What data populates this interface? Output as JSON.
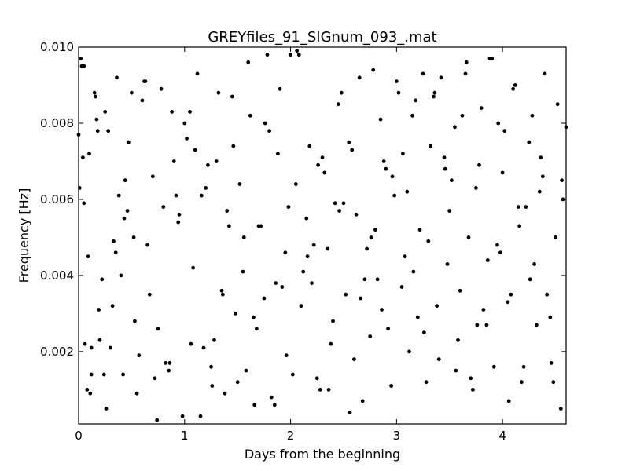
{
  "chart_data": {
    "type": "scatter",
    "title": "GREYfiles_91_SIGnum_093_.mat",
    "xlabel": "Days from the beginning",
    "ylabel": "Frequency [Hz]",
    "xlim": [
      0,
      4.6
    ],
    "ylim": [
      0.0001,
      0.01
    ],
    "x_ticks": [
      0,
      1,
      2,
      3,
      4
    ],
    "x_tick_labels": [
      "0",
      "1",
      "2",
      "3",
      "4"
    ],
    "y_ticks": [
      0.002,
      0.004,
      0.006,
      0.008,
      0.01
    ],
    "y_tick_labels": [
      "0.002",
      "0.004",
      "0.006",
      "0.008",
      "0.010"
    ],
    "grid": false,
    "marker_color": "#000000",
    "series": [
      {
        "x": [
          0.0,
          0.02,
          0.04,
          0.05,
          0.08,
          0.1,
          0.11,
          0.15,
          0.17,
          0.2,
          0.22,
          0.25,
          0.3,
          0.33,
          0.38,
          0.4,
          0.43,
          0.47,
          0.5,
          0.55,
          0.6,
          0.65,
          0.7,
          0.75,
          0.8,
          0.85,
          0.9,
          0.95,
          1.0,
          1.05,
          1.1,
          1.15,
          1.2,
          1.25,
          1.3,
          1.35,
          1.4,
          1.45,
          1.5,
          1.55,
          1.6,
          1.65,
          1.7,
          1.75,
          1.8,
          1.85,
          1.9,
          1.95,
          2.0,
          2.05,
          2.1,
          2.15,
          2.2,
          2.25,
          2.3,
          2.35,
          2.4,
          2.45,
          2.5,
          2.55,
          2.6,
          2.65,
          2.7,
          2.75,
          2.8,
          2.85,
          2.9,
          2.95,
          3.0,
          3.05,
          3.1,
          3.15,
          3.2,
          3.25,
          3.3,
          3.35,
          3.4,
          3.45,
          3.5,
          3.55,
          3.6,
          3.65,
          3.7,
          3.75,
          3.8,
          3.85,
          3.9,
          3.95,
          4.0,
          4.05,
          4.1,
          4.15,
          4.2,
          4.25,
          4.3,
          4.35,
          4.4,
          4.45,
          4.5,
          4.55,
          4.6,
          0.01,
          0.03,
          0.06,
          0.09,
          0.12,
          0.16,
          0.19,
          0.24,
          0.28,
          0.32,
          0.36,
          0.42,
          0.46,
          0.52,
          0.57,
          0.62,
          0.67,
          0.72,
          0.78,
          0.82,
          0.88,
          0.92,
          0.98,
          1.02,
          1.08,
          1.12,
          1.18,
          1.22,
          1.28,
          1.32,
          1.38,
          1.42,
          1.48,
          1.52,
          1.58,
          1.62,
          1.68,
          1.72,
          1.78,
          1.82,
          1.88,
          1.92,
          1.98,
          2.02,
          2.08,
          2.12,
          2.18,
          2.22,
          2.28,
          2.32,
          2.38,
          2.42,
          2.48,
          2.52,
          2.58,
          2.62,
          2.68,
          2.72,
          2.78,
          2.82,
          2.88,
          2.92,
          2.98,
          3.02,
          3.08,
          3.12,
          3.18,
          3.22,
          3.28,
          3.32,
          3.38,
          3.42,
          3.48,
          3.52,
          3.58,
          3.62,
          3.68,
          3.72,
          3.78,
          3.82,
          3.88,
          3.92,
          3.98,
          4.02,
          4.08,
          4.12,
          4.18,
          4.22,
          4.28,
          4.32,
          4.38,
          4.42,
          4.48,
          4.52,
          4.57,
          0.05,
          0.12,
          0.18,
          0.26,
          0.35,
          0.44,
          0.53,
          0.63,
          0.74,
          0.86,
          0.94,
          1.06,
          1.16,
          1.26,
          1.36,
          1.46,
          1.56,
          1.66,
          1.76,
          1.86,
          1.96,
          2.06,
          2.16,
          2.26,
          2.36,
          2.46,
          2.56,
          2.66,
          2.76,
          2.86,
          2.96,
          3.06,
          3.16,
          3.26,
          3.36,
          3.46,
          3.56,
          3.66,
          3.76,
          3.86,
          3.96,
          4.06,
          4.16,
          4.26,
          4.36,
          4.46,
          4.56
        ],
        "y": [
          0.0077,
          0.0097,
          0.0071,
          0.0059,
          0.001,
          0.0072,
          0.0009,
          0.0088,
          0.0081,
          0.0023,
          0.0039,
          0.0083,
          0.0021,
          0.0049,
          0.0061,
          0.004,
          0.0055,
          0.0075,
          0.0088,
          0.0009,
          0.0086,
          0.0048,
          0.0066,
          0.0026,
          0.0058,
          0.0015,
          0.007,
          0.0056,
          0.008,
          0.0083,
          0.0073,
          0.0003,
          0.0063,
          0.0016,
          0.007,
          0.0036,
          0.0057,
          0.0087,
          0.0012,
          0.0041,
          0.0096,
          0.0029,
          0.0053,
          0.0034,
          0.0078,
          0.0006,
          0.0089,
          0.0046,
          0.0098,
          0.0064,
          0.0032,
          0.0055,
          0.0038,
          0.0013,
          0.0071,
          0.0047,
          0.0028,
          0.0085,
          0.0059,
          0.0075,
          0.0018,
          0.0092,
          0.0039,
          0.0024,
          0.0052,
          0.0081,
          0.0068,
          0.0011,
          0.0091,
          0.0037,
          0.0062,
          0.0082,
          0.0029,
          0.0093,
          0.0049,
          0.0087,
          0.0018,
          0.0071,
          0.0057,
          0.0079,
          0.0036,
          0.0093,
          0.0013,
          0.0063,
          0.0084,
          0.0027,
          0.0097,
          0.0048,
          0.0067,
          0.0033,
          0.0089,
          0.0058,
          0.0016,
          0.0075,
          0.0043,
          0.0062,
          0.0093,
          0.0029,
          0.005,
          0.0005,
          0.0079,
          0.0063,
          0.0095,
          0.0022,
          0.0045,
          0.0021,
          0.0087,
          0.0031,
          0.0014,
          0.0078,
          0.0032,
          0.0092,
          0.0014,
          0.0057,
          0.005,
          0.0019,
          0.0091,
          0.0035,
          0.0013,
          0.0089,
          0.0017,
          0.0083,
          0.0061,
          0.0003,
          0.0076,
          0.0042,
          0.0093,
          0.0021,
          0.0069,
          0.0023,
          0.0088,
          0.0009,
          0.0053,
          0.003,
          0.0064,
          0.0015,
          0.0082,
          0.0026,
          0.0053,
          0.0098,
          0.0008,
          0.0072,
          0.0037,
          0.0058,
          0.0014,
          0.0098,
          0.0041,
          0.0074,
          0.0048,
          0.001,
          0.0067,
          0.0022,
          0.0059,
          0.0088,
          0.0035,
          0.0073,
          0.0056,
          0.0007,
          0.0047,
          0.0094,
          0.0039,
          0.007,
          0.0026,
          0.0061,
          0.0088,
          0.0045,
          0.002,
          0.0086,
          0.0052,
          0.0012,
          0.0074,
          0.0032,
          0.0092,
          0.0043,
          0.0065,
          0.0023,
          0.0082,
          0.005,
          0.001,
          0.0069,
          0.0031,
          0.0097,
          0.0016,
          0.0046,
          0.0078,
          0.0035,
          0.009,
          0.0012,
          0.0058,
          0.0082,
          0.0027,
          0.0066,
          0.0035,
          0.0012,
          0.0085,
          0.006,
          0.0095,
          0.0014,
          0.0078,
          0.0005,
          0.0046,
          0.0065,
          0.0028,
          0.0091,
          0.0002,
          0.0017,
          0.0054,
          0.0022,
          0.0061,
          0.0011,
          0.0035,
          0.0074,
          0.005,
          0.0006,
          0.008,
          0.0038,
          0.0019,
          0.0099,
          0.0045,
          0.0069,
          0.001,
          0.0057,
          0.0004,
          0.0034,
          0.005,
          0.0031,
          0.0066,
          0.0072,
          0.0041,
          0.0025,
          0.0088,
          0.0068,
          0.0015,
          0.0096,
          0.0027,
          0.0044,
          0.008,
          0.0007,
          0.0053,
          0.0039,
          0.0071,
          0.0017,
          0.0065
        ]
      }
    ]
  }
}
